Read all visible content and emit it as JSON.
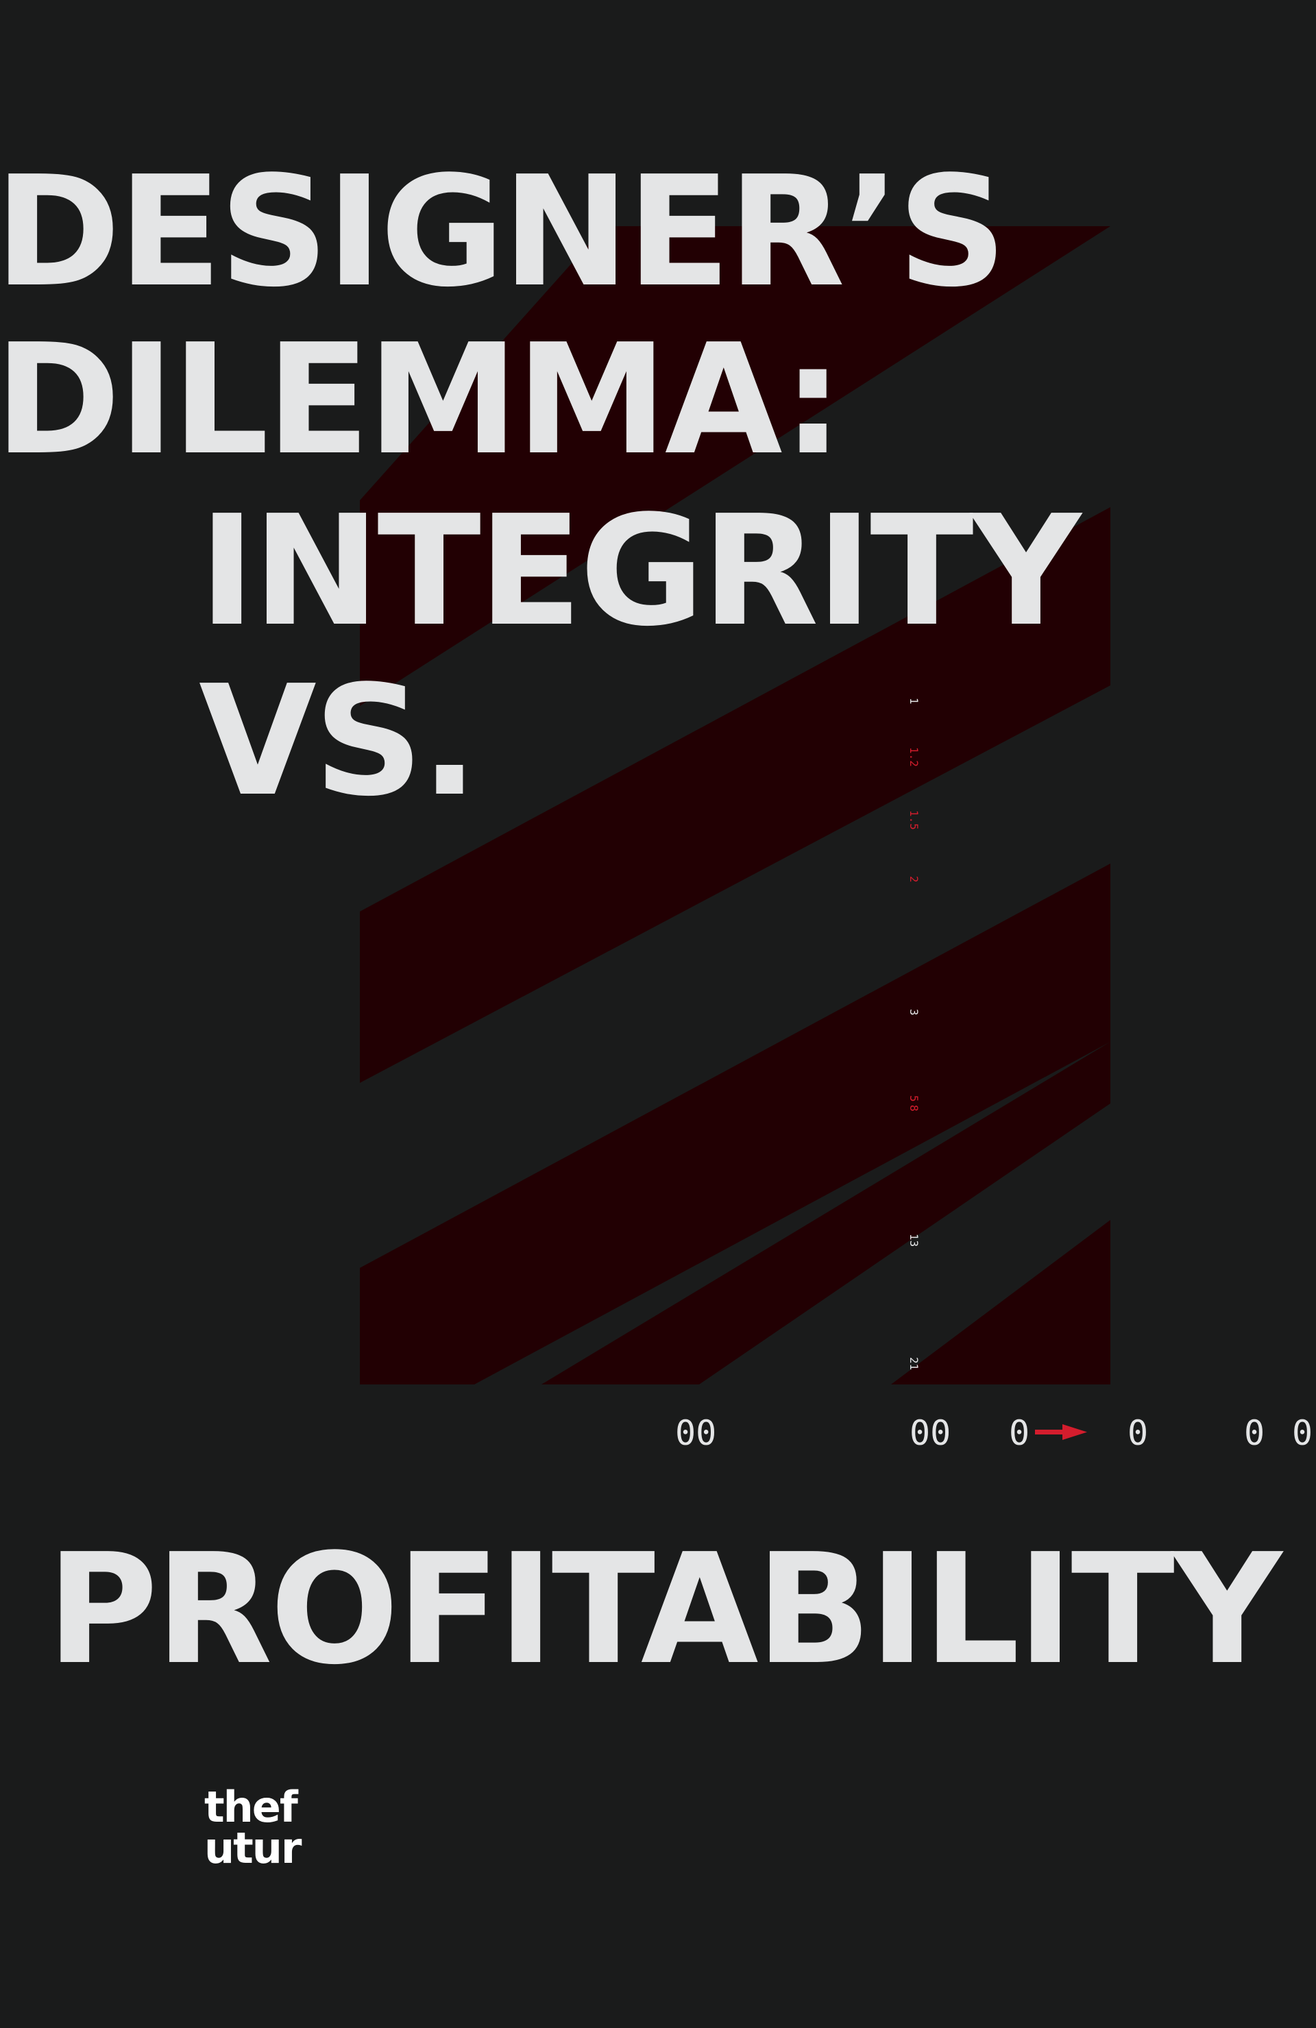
{
  "poster": {
    "headline": {
      "line1": "DESIGNER’S",
      "line2": "DILEMMA:",
      "line3": "INTEGRITY",
      "line4": "VS.",
      "line5": "PROFITABILITY"
    },
    "scale_labels": [
      "1",
      "1.2",
      "1.5",
      "2",
      "3",
      "5",
      "8",
      "13",
      "21"
    ],
    "counters": [
      "00",
      "00",
      "0",
      "0",
      "0",
      "0"
    ],
    "logo": {
      "line1": "thef",
      "line2": "utur"
    },
    "colors": {
      "background": "#1a1b1b",
      "text": "#e4e5e6",
      "accent": "#d41d2d",
      "stripe": "#220003"
    },
    "icons": [
      "arrow-right-icon",
      "diagonal-stripes-graphic"
    ]
  }
}
